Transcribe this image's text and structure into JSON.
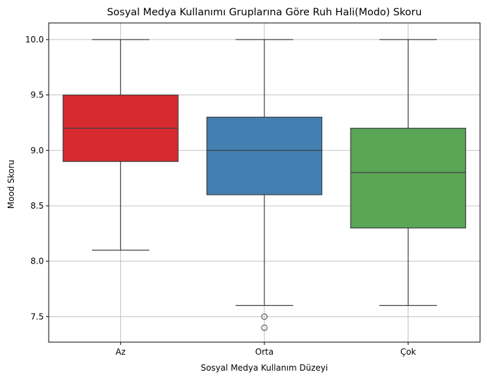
{
  "chart_data": {
    "type": "box",
    "title": "Sosyal Medya Kullanımı Gruplarına Göre Ruh Hali(Modo) Skoru",
    "xlabel": "Sosyal Medya Kullanım Düzeyi",
    "ylabel": "Mood Skoru",
    "ylim": [
      7.27,
      10.15
    ],
    "yticks": [
      7.5,
      8.0,
      8.5,
      9.0,
      9.5,
      10.0
    ],
    "ytick_labels": [
      "7.5",
      "8.0",
      "8.5",
      "9.0",
      "9.5",
      "10.0"
    ],
    "grid": true,
    "categories": [
      "Az",
      "Orta",
      "Çok"
    ],
    "boxes": [
      {
        "category": "Az",
        "whisker_low": 8.1,
        "q1": 8.9,
        "median": 9.2,
        "q3": 9.5,
        "whisker_high": 10.0,
        "outliers": [],
        "color": "#d62a30"
      },
      {
        "category": "Orta",
        "whisker_low": 7.6,
        "q1": 8.6,
        "median": 9.0,
        "q3": 9.3,
        "whisker_high": 10.0,
        "outliers": [
          7.5,
          7.4
        ],
        "color": "#437fb1"
      },
      {
        "category": "Çok",
        "whisker_low": 7.6,
        "q1": 8.3,
        "median": 8.8,
        "q3": 9.2,
        "whisker_high": 10.0,
        "outliers": [],
        "color": "#5aa556"
      }
    ]
  }
}
